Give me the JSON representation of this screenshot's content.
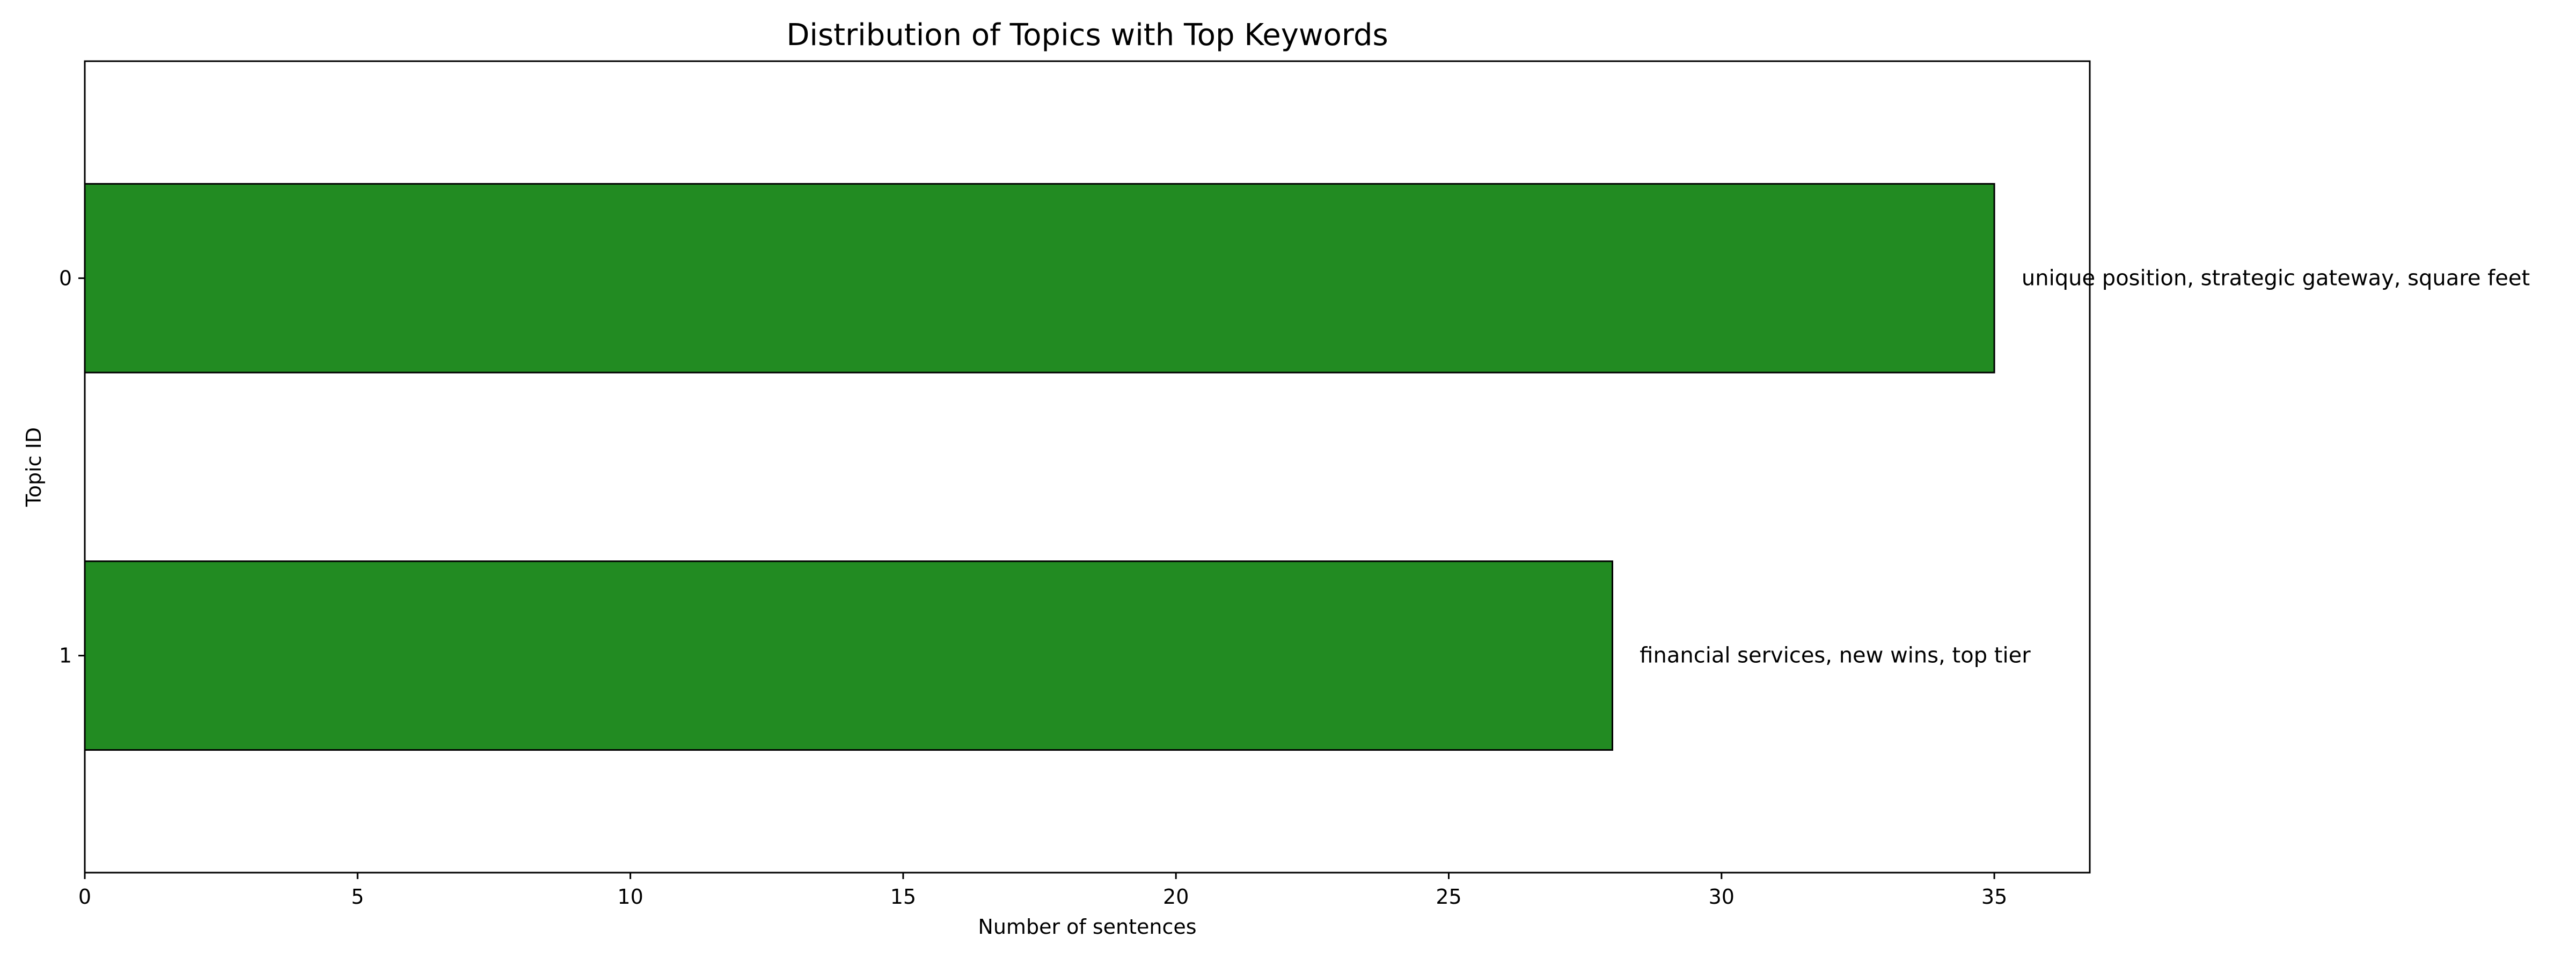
{
  "chart_data": {
    "type": "bar",
    "orientation": "horizontal",
    "title": "Distribution of Topics with Top Keywords",
    "xlabel": "Number of sentences",
    "ylabel": "Topic ID",
    "categories": [
      "0",
      "1"
    ],
    "values": [
      35,
      28
    ],
    "annotations": [
      "unique position, strategic gateway, square feet",
      "financial services, new wins, top tier"
    ],
    "xlim": [
      0,
      36.75
    ],
    "xticks": [
      0,
      5,
      10,
      15,
      20,
      25,
      30,
      35
    ],
    "y_inverted": true,
    "grid": false,
    "legend": "none",
    "bar_color": "#228b22",
    "bar_edge_color": "#000000"
  }
}
